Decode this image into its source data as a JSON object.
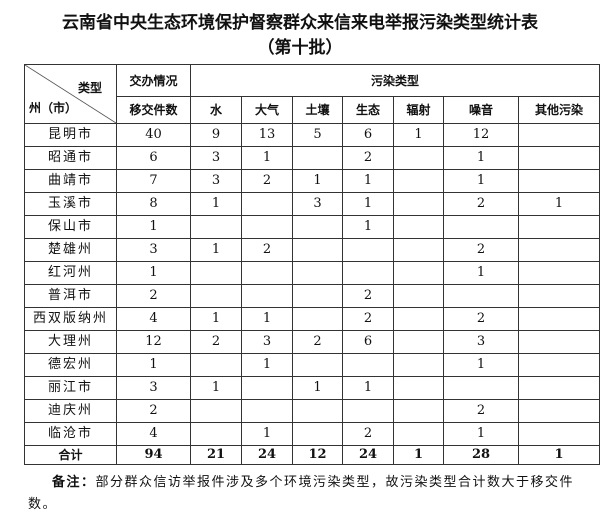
{
  "title": "云南省中央生态环境保护督察群众来信来电举报污染类型统计表",
  "subtitle": "（第十批）",
  "header": {
    "corner_top": "类型",
    "corner_bottom": "州（市）",
    "group1": "交办情况",
    "group2": "污染类型",
    "cols": [
      "移交件数",
      "水",
      "大气",
      "土壤",
      "生态",
      "辐射",
      "噪音",
      "其他污染"
    ]
  },
  "rows": [
    [
      "昆明市",
      "40",
      "9",
      "13",
      "5",
      "6",
      "1",
      "12",
      ""
    ],
    [
      "昭通市",
      "6",
      "3",
      "1",
      "",
      "2",
      "",
      "1",
      ""
    ],
    [
      "曲靖市",
      "7",
      "3",
      "2",
      "1",
      "1",
      "",
      "1",
      ""
    ],
    [
      "玉溪市",
      "8",
      "1",
      "",
      "3",
      "1",
      "",
      "2",
      "1"
    ],
    [
      "保山市",
      "1",
      "",
      "",
      "",
      "1",
      "",
      "",
      ""
    ],
    [
      "楚雄州",
      "3",
      "1",
      "2",
      "",
      "",
      "",
      "2",
      ""
    ],
    [
      "红河州",
      "1",
      "",
      "",
      "",
      "",
      "",
      "1",
      ""
    ],
    [
      "普洱市",
      "2",
      "",
      "",
      "",
      "2",
      "",
      "",
      ""
    ],
    [
      "西双版纳州",
      "4",
      "1",
      "1",
      "",
      "2",
      "",
      "2",
      ""
    ],
    [
      "大理州",
      "12",
      "2",
      "3",
      "2",
      "6",
      "",
      "3",
      ""
    ],
    [
      "德宏州",
      "1",
      "",
      "1",
      "",
      "",
      "",
      "1",
      ""
    ],
    [
      "丽江市",
      "3",
      "1",
      "",
      "1",
      "1",
      "",
      "",
      ""
    ],
    [
      "迪庆州",
      "2",
      "",
      "",
      "",
      "",
      "",
      "2",
      ""
    ],
    [
      "临沧市",
      "4",
      "",
      "1",
      "",
      "2",
      "",
      "1",
      ""
    ]
  ],
  "total": [
    "合计",
    "94",
    "21",
    "24",
    "12",
    "24",
    "1",
    "28",
    "1"
  ],
  "note_label": "备注：",
  "note": "部分群众信访举报件涉及多个环境污染类型，故污染类型合计数大于移交件数。"
}
